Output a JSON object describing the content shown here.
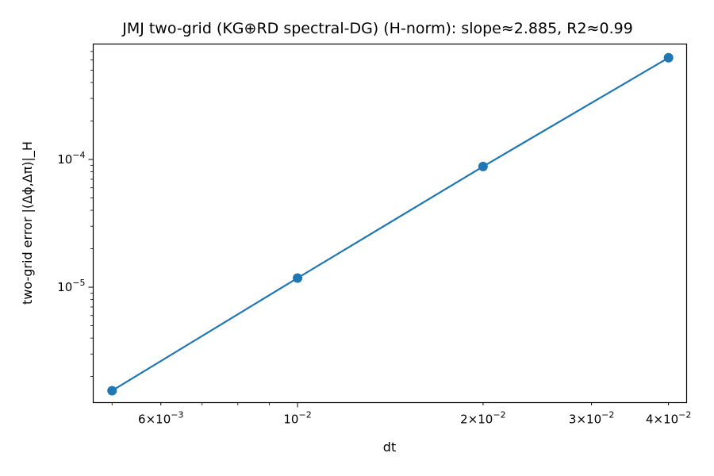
{
  "chart_data": {
    "type": "line",
    "title": "JMJ two-grid (KG⊕RD spectral-DG) (H-norm): slope≈2.885, R2≈0.99",
    "xlabel": "dt",
    "ylabel": "two-grid error |(Δϕ,Δπ)|_H",
    "xscale": "log",
    "yscale": "log",
    "xlim": [
      0.00466,
      0.0428
    ],
    "ylim": [
      1.25e-06,
      0.0008
    ],
    "grid": false,
    "legend": "none",
    "series": [
      {
        "x": [
          0.005,
          0.01,
          0.02,
          0.04
        ],
        "y": [
          1.55e-06,
          1.18e-05,
          8.8e-05,
          0.000625
        ],
        "color": "#1f77b4",
        "marker": "circle"
      }
    ],
    "x_tick_labels": [
      {
        "value": 0.006,
        "mantissa": "6",
        "exponent": "−3"
      },
      {
        "value": 0.01,
        "mantissa": "",
        "exponent": "−2"
      },
      {
        "value": 0.02,
        "mantissa": "2",
        "exponent": "−2"
      },
      {
        "value": 0.03,
        "mantissa": "3",
        "exponent": "−2"
      },
      {
        "value": 0.04,
        "mantissa": "4",
        "exponent": "−2"
      }
    ],
    "y_tick_labels": [
      {
        "value": 1e-05,
        "exponent": "−5"
      },
      {
        "value": 0.0001,
        "exponent": "−4"
      }
    ]
  }
}
